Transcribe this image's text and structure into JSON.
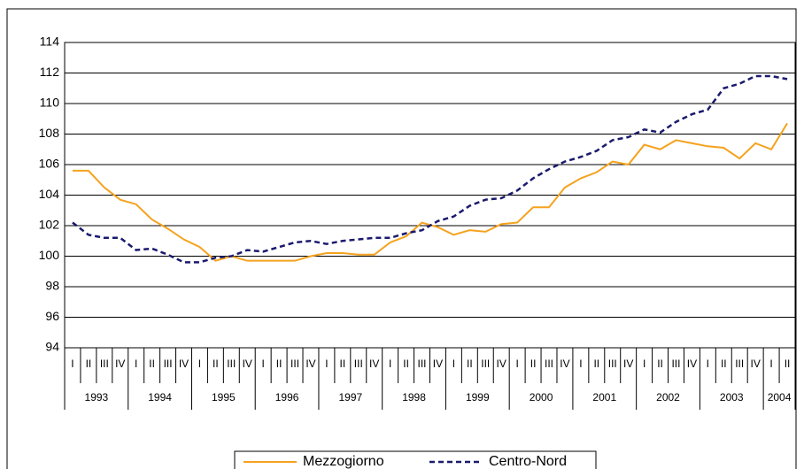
{
  "chart_data": {
    "type": "line",
    "categories": [
      "I",
      "II",
      "III",
      "IV",
      "I",
      "II",
      "III",
      "IV",
      "I",
      "II",
      "III",
      "IV",
      "I",
      "II",
      "III",
      "IV",
      "I",
      "II",
      "III",
      "IV",
      "I",
      "II",
      "III",
      "IV",
      "I",
      "II",
      "III",
      "IV",
      "I",
      "II",
      "III",
      "IV",
      "I",
      "II",
      "III",
      "IV",
      "I",
      "II",
      "III",
      "IV",
      "I",
      "II",
      "III",
      "IV",
      "I",
      "II"
    ],
    "year_labels": [
      "1993",
      "1994",
      "1995",
      "1996",
      "1997",
      "1998",
      "1999",
      "2000",
      "2001",
      "2002",
      "2003",
      "2004"
    ],
    "series": [
      {
        "name": "Mezzogiorno",
        "color": "#f5a21e",
        "dash": false,
        "values": [
          105.6,
          105.6,
          104.5,
          103.7,
          103.4,
          102.4,
          101.8,
          101.1,
          100.6,
          99.7,
          100.0,
          99.7,
          99.7,
          99.7,
          99.7,
          100.0,
          100.2,
          100.2,
          100.1,
          100.1,
          100.9,
          101.3,
          102.2,
          101.9,
          101.4,
          101.7,
          101.6,
          102.1,
          102.2,
          103.2,
          103.2,
          104.5,
          105.1,
          105.5,
          106.2,
          106.0,
          107.3,
          107.0,
          107.6,
          107.4,
          107.2,
          107.1,
          106.4,
          107.4,
          107.0,
          108.7
        ]
      },
      {
        "name": "Centro-Nord",
        "color": "#1a1a6e",
        "dash": true,
        "values": [
          102.2,
          101.4,
          101.2,
          101.2,
          100.4,
          100.5,
          100.1,
          99.6,
          99.6,
          99.9,
          100.0,
          100.4,
          100.3,
          100.6,
          100.9,
          101.0,
          100.8,
          101.0,
          101.1,
          101.2,
          101.2,
          101.5,
          101.7,
          102.3,
          102.6,
          103.3,
          103.7,
          103.8,
          104.3,
          105.1,
          105.7,
          106.2,
          106.5,
          106.9,
          107.6,
          107.8,
          108.3,
          108.1,
          108.8,
          109.3,
          109.6,
          111.0,
          111.3,
          111.8,
          111.8,
          111.6
        ]
      }
    ],
    "ylim": [
      94,
      114
    ],
    "yticks": [
      94,
      96,
      98,
      100,
      102,
      104,
      106,
      108,
      110,
      112,
      114
    ],
    "grid": true
  }
}
